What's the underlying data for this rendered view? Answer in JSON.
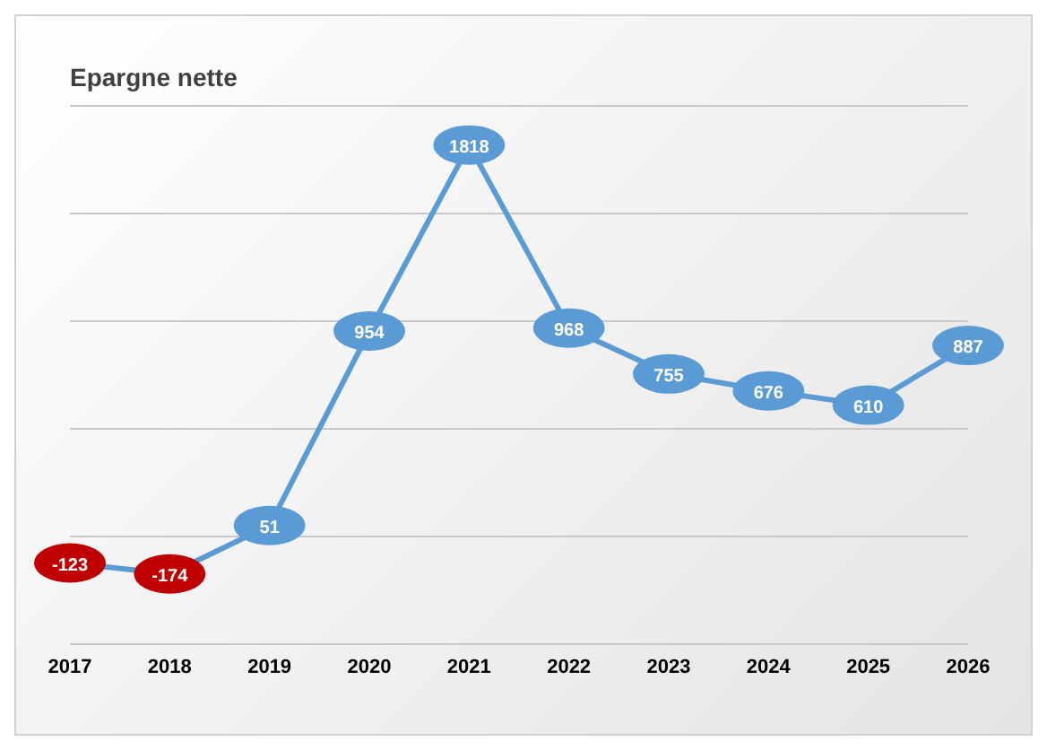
{
  "chart_data": {
    "type": "line",
    "title": "Epargne nette",
    "categories": [
      "2017",
      "2018",
      "2019",
      "2020",
      "2021",
      "2022",
      "2023",
      "2024",
      "2025",
      "2026"
    ],
    "series": [
      {
        "color": "#5b9bd5",
        "colors": [
          "#c00000",
          "#c00000",
          "#5b9bd5",
          "#5b9bd5",
          "#5b9bd5",
          "#5b9bd5",
          "#5b9bd5",
          "#5b9bd5",
          "#5b9bd5",
          "#5b9bd5"
        ],
        "values": [
          -123,
          -174,
          51,
          954,
          1818,
          968,
          755,
          676,
          610,
          887
        ]
      }
    ],
    "ylim": [
      -500,
      2000
    ],
    "yticks": [
      {
        "value": -500,
        "label": null
      },
      {
        "value": 0,
        "label": null
      },
      {
        "value": 500,
        "label": null
      },
      {
        "value": 1000,
        "label": null
      },
      {
        "value": 1500,
        "label": null
      },
      {
        "value": 2000,
        "label": null
      }
    ],
    "tick_labels": "x",
    "grid": "y",
    "data_labels": true,
    "marker": "circle",
    "legend": false
  }
}
